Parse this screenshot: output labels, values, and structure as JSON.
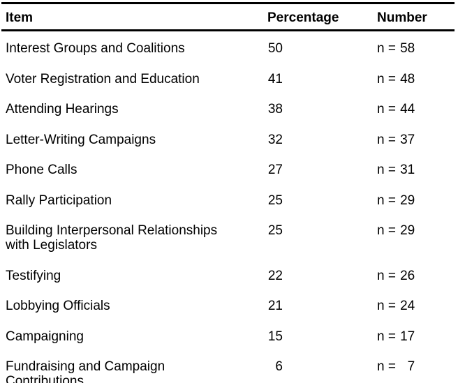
{
  "colors": {
    "text": "#000000",
    "background": "#ffffff",
    "rule": "#000000"
  },
  "table": {
    "columns": {
      "item": "Item",
      "percentage": "Percentage",
      "number": "Number"
    },
    "n_prefix": "n =",
    "rows": [
      {
        "item": "Interest Groups and Coalitions",
        "percentage": "50",
        "n": "58"
      },
      {
        "item": "Voter Registration and Education",
        "percentage": "41",
        "n": "48"
      },
      {
        "item": "Attending Hearings",
        "percentage": "38",
        "n": "44"
      },
      {
        "item": "Letter-Writing Campaigns",
        "percentage": "32",
        "n": "37"
      },
      {
        "item": "Phone Calls",
        "percentage": "27",
        "n": "31"
      },
      {
        "item": "Rally Participation",
        "percentage": "25",
        "n": "29"
      },
      {
        "item": "Building Interpersonal Relationships with Legislators",
        "percentage": "25",
        "n": "29"
      },
      {
        "item": "Testifying",
        "percentage": "22",
        "n": "26"
      },
      {
        "item": "Lobbying Officials",
        "percentage": "21",
        "n": "24"
      },
      {
        "item": "Campaigning",
        "percentage": "15",
        "n": "17"
      },
      {
        "item": "Fundraising and Campaign Contributions",
        "percentage": "6",
        "n": "7"
      }
    ]
  },
  "chart_data": {
    "type": "table",
    "title": "",
    "columns": [
      "Item",
      "Percentage",
      "Number"
    ],
    "categories": [
      "Interest Groups and Coalitions",
      "Voter Registration and Education",
      "Attending Hearings",
      "Letter-Writing Campaigns",
      "Phone Calls",
      "Rally Participation",
      "Building Interpersonal Relationships with Legislators",
      "Testifying",
      "Lobbying Officials",
      "Campaigning",
      "Fundraising and Campaign Contributions"
    ],
    "series": [
      {
        "name": "Percentage",
        "values": [
          50,
          41,
          38,
          32,
          27,
          25,
          25,
          22,
          21,
          15,
          6
        ]
      },
      {
        "name": "Number (n)",
        "values": [
          58,
          48,
          44,
          37,
          31,
          29,
          29,
          26,
          24,
          17,
          7
        ]
      }
    ]
  }
}
